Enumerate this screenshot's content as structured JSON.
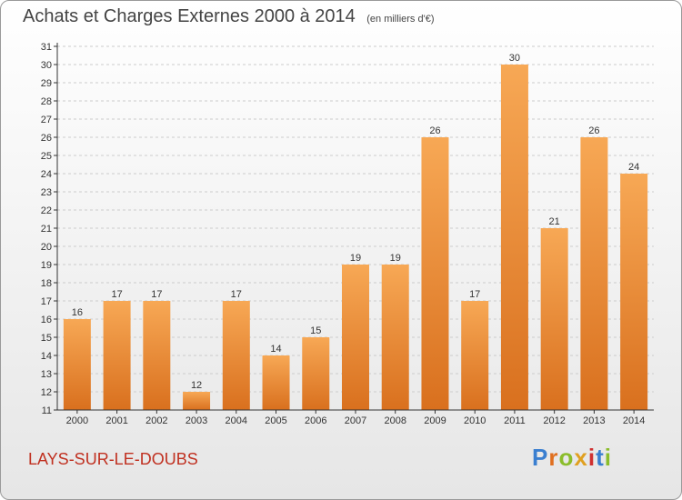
{
  "title": "Achats et Charges Externes 2000 à 2014",
  "subtitle": "(en milliers d'€)",
  "commune": "LAYS-SUR-LE-DOUBS",
  "logo": {
    "letters": [
      {
        "ch": "P",
        "color": "#3a7fd0"
      },
      {
        "ch": "r",
        "color": "#e07020"
      },
      {
        "ch": "o",
        "color": "#8bbd2b"
      },
      {
        "ch": "x",
        "color": "#e0a020"
      },
      {
        "ch": "i",
        "color": "#d03030"
      },
      {
        "ch": "t",
        "color": "#3a7fd0"
      },
      {
        "ch": "i",
        "color": "#8bbd2b"
      }
    ]
  },
  "colors": {
    "bar_light": "#f7a855",
    "bar_dark": "#d9701e",
    "axis": "#333333",
    "grid": "#cccccc",
    "text": "#333333"
  },
  "chart_data": {
    "type": "bar",
    "title": "Achats et Charges Externes 2000 à 2014",
    "subtitle": "(en milliers d'€)",
    "categories": [
      "2000",
      "2001",
      "2002",
      "2003",
      "2004",
      "2005",
      "2006",
      "2007",
      "2008",
      "2009",
      "2010",
      "2011",
      "2012",
      "2013",
      "2014"
    ],
    "values": [
      16,
      17,
      17,
      12,
      17,
      14,
      15,
      19,
      19,
      26,
      17,
      30,
      21,
      26,
      24
    ],
    "ylim": [
      11,
      31
    ],
    "yticks": [
      11,
      12,
      13,
      14,
      15,
      16,
      17,
      18,
      19,
      20,
      21,
      22,
      23,
      24,
      25,
      26,
      27,
      28,
      29,
      30,
      31
    ],
    "grid": "horizontal dashed"
  }
}
